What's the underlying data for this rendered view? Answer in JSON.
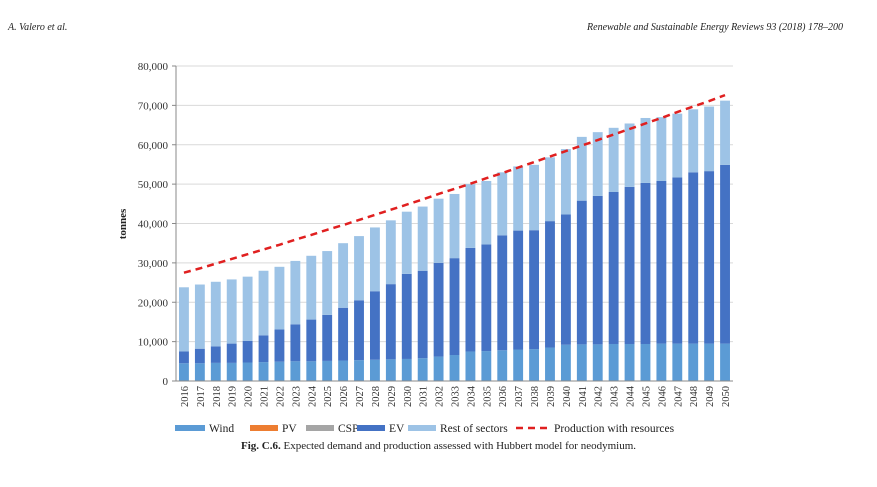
{
  "header": {
    "left": "A. Valero et al.",
    "right": "Renewable and Sustainable Energy Reviews 93 (2018) 178–200"
  },
  "caption": {
    "label": "Fig. C.6.",
    "text": " Expected demand and production assessed with Hubbert model for neodymium."
  },
  "colors": {
    "wind": "#5b9bd5",
    "pv": "#ed7d31",
    "csp": "#a5a5a5",
    "ev": "#4472c4",
    "rest": "#9dc3e6",
    "production": "#e02020",
    "grid": "#d9d9d9",
    "axis": "#888888"
  },
  "chart_data": {
    "type": "bar",
    "stacked": true,
    "title": "",
    "xlabel": "",
    "ylabel": "tonnes",
    "ylim": [
      0,
      80000
    ],
    "yticks": [
      0,
      10000,
      20000,
      30000,
      40000,
      50000,
      60000,
      70000,
      80000
    ],
    "ytick_labels": [
      "0",
      "10,000",
      "20,000",
      "30,000",
      "40,000",
      "50,000",
      "60,000",
      "70,000",
      "80,000"
    ],
    "grid": true,
    "legend_position": "bottom",
    "categories": [
      "2016",
      "2017",
      "2018",
      "2019",
      "2020",
      "2021",
      "2022",
      "2023",
      "2024",
      "2025",
      "2026",
      "2027",
      "2028",
      "2029",
      "2030",
      "2031",
      "2032",
      "2033",
      "2034",
      "2035",
      "2036",
      "2037",
      "2038",
      "2039",
      "2040",
      "2041",
      "2042",
      "2043",
      "2044",
      "2045",
      "2046",
      "2047",
      "2048",
      "2049",
      "2050"
    ],
    "series": [
      {
        "name": "Wind",
        "kind": "bar",
        "values": [
          4500,
          4500,
          4600,
          4600,
          4700,
          4800,
          4900,
          5000,
          5000,
          5100,
          5200,
          5300,
          5400,
          5500,
          5600,
          5800,
          6200,
          6600,
          7500,
          7600,
          7800,
          8000,
          8100,
          8500,
          9200,
          9300,
          9300,
          9400,
          9400,
          9400,
          9500,
          9500,
          9500,
          9500,
          9500
        ]
      },
      {
        "name": "PV",
        "kind": "bar",
        "values": [
          0,
          0,
          0,
          0,
          0,
          0,
          0,
          0,
          0,
          0,
          0,
          0,
          0,
          0,
          0,
          0,
          0,
          0,
          0,
          0,
          0,
          0,
          0,
          0,
          0,
          0,
          0,
          0,
          0,
          0,
          0,
          0,
          0,
          0,
          0
        ]
      },
      {
        "name": "CSP",
        "kind": "bar",
        "values": [
          0,
          0,
          0,
          0,
          0,
          0,
          0,
          0,
          0,
          0,
          0,
          0,
          0,
          0,
          0,
          0,
          0,
          0,
          0,
          0,
          0,
          0,
          0,
          0,
          0,
          0,
          0,
          0,
          0,
          0,
          0,
          0,
          0,
          0,
          0
        ]
      },
      {
        "name": "EV",
        "kind": "bar",
        "values": [
          3000,
          3700,
          4200,
          4900,
          5500,
          6800,
          8200,
          9400,
          10600,
          11700,
          13400,
          15200,
          17400,
          19100,
          21600,
          22200,
          23800,
          24600,
          26300,
          27100,
          29200,
          30200,
          30200,
          32100,
          33100,
          36500,
          37700,
          38600,
          39900,
          40900,
          41300,
          42200,
          43500,
          43800,
          45400
        ]
      },
      {
        "name": "Rest of sectors",
        "kind": "bar",
        "values": [
          16300,
          16300,
          16400,
          16300,
          16300,
          16400,
          15900,
          16100,
          16200,
          16200,
          16400,
          16300,
          16200,
          16200,
          15800,
          16300,
          16300,
          16300,
          16200,
          16100,
          16000,
          16300,
          16600,
          16200,
          16600,
          16200,
          16200,
          16300,
          16100,
          16500,
          16200,
          16200,
          16000,
          16400,
          16300
        ]
      },
      {
        "name": "Production with resources",
        "kind": "line",
        "style": "dashed",
        "values": [
          27500,
          28600,
          29800,
          31000,
          32200,
          33400,
          34600,
          35900,
          37100,
          38400,
          39600,
          40900,
          42200,
          43500,
          44800,
          46100,
          47500,
          48800,
          50100,
          51500,
          52800,
          54200,
          55600,
          57000,
          58400,
          59800,
          61200,
          62600,
          64000,
          65400,
          66800,
          68300,
          69700,
          71100,
          72600
        ]
      }
    ]
  }
}
